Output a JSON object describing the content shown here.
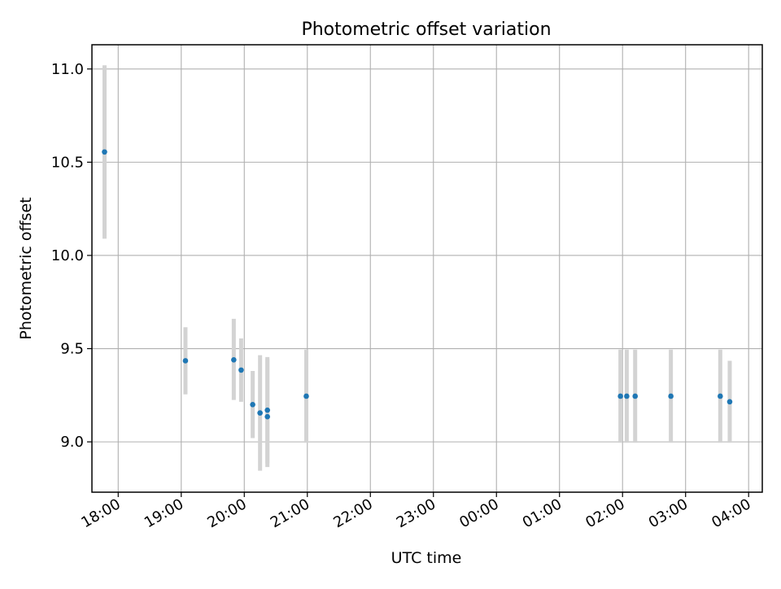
{
  "chart_data": {
    "type": "scatter",
    "title": "Photometric offset variation",
    "xlabel": "UTC time",
    "ylabel": "Photometric offset",
    "grid": true,
    "legend": "none",
    "x_tick_labels": [
      "18:00",
      "19:00",
      "20:00",
      "21:00",
      "22:00",
      "23:00",
      "00:00",
      "01:00",
      "02:00",
      "03:00",
      "04:00"
    ],
    "y_tick_labels": [
      "9.0",
      "9.5",
      "10.0",
      "10.5",
      "11.0"
    ],
    "y_ticks": [
      9.0,
      9.5,
      10.0,
      10.5,
      11.0
    ],
    "x_range": [
      "17:35",
      "04:13"
    ],
    "ylim": [
      8.73,
      11.13
    ],
    "series": [
      {
        "marker_color": "#1f77b4",
        "errorbar_color": "#d3d3d3",
        "points": [
          {
            "x": "17:47",
            "y": 10.555,
            "yerr_low": 10.09,
            "yerr_high": 11.02
          },
          {
            "x": "19:04",
            "y": 9.435,
            "yerr_low": 9.255,
            "yerr_high": 9.615
          },
          {
            "x": "19:50",
            "y": 9.44,
            "yerr_low": 9.225,
            "yerr_high": 9.66
          },
          {
            "x": "19:57",
            "y": 9.385,
            "yerr_low": 9.215,
            "yerr_high": 9.555
          },
          {
            "x": "20:08",
            "y": 9.2,
            "yerr_low": 9.02,
            "yerr_high": 9.38
          },
          {
            "x": "20:15",
            "y": 9.155,
            "yerr_low": 8.845,
            "yerr_high": 9.465
          },
          {
            "x": "20:22",
            "y": 9.135,
            "yerr_low": 8.865,
            "yerr_high": 9.445
          },
          {
            "x": "20:22",
            "y": 9.17,
            "yerr_low": 8.885,
            "yerr_high": 9.455
          },
          {
            "x": "20:59",
            "y": 9.245,
            "yerr_low": 8.995,
            "yerr_high": 9.495
          },
          {
            "x": "01:58",
            "y": 9.245,
            "yerr_low": 8.995,
            "yerr_high": 9.495
          },
          {
            "x": "02:04",
            "y": 9.245,
            "yerr_low": 8.995,
            "yerr_high": 9.495
          },
          {
            "x": "02:12",
            "y": 9.245,
            "yerr_low": 8.995,
            "yerr_high": 9.495
          },
          {
            "x": "02:46",
            "y": 9.245,
            "yerr_low": 8.995,
            "yerr_high": 9.495
          },
          {
            "x": "03:33",
            "y": 9.245,
            "yerr_low": 8.995,
            "yerr_high": 9.495
          },
          {
            "x": "03:42",
            "y": 9.215,
            "yerr_low": 8.995,
            "yerr_high": 9.435
          }
        ]
      }
    ]
  }
}
